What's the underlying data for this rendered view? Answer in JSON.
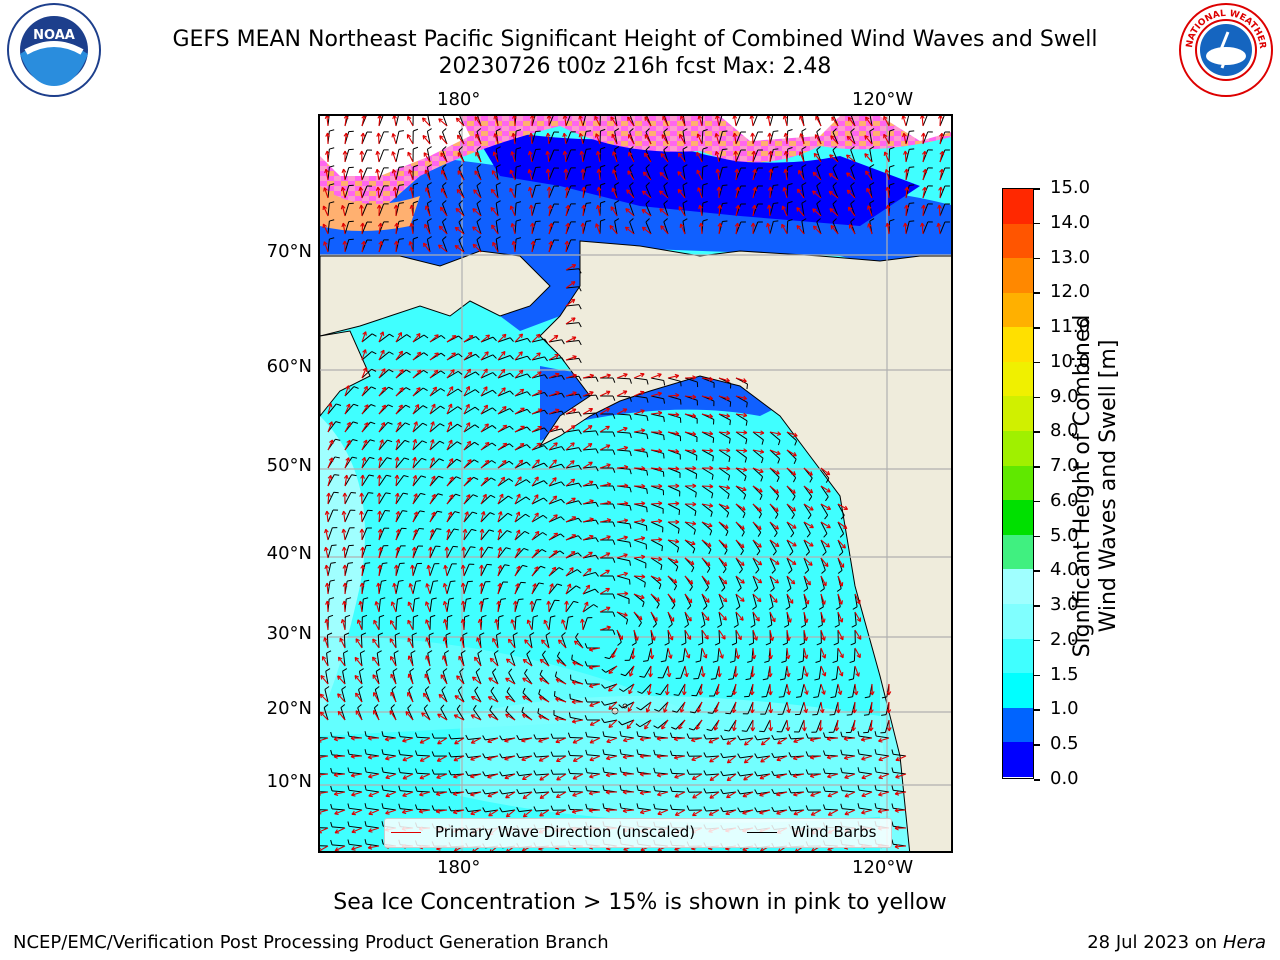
{
  "header": {
    "title_line1": "GEFS MEAN Northeast Pacific Significant Height of Combined Wind Waves and Swell",
    "title_line2": "20230726 t00z 216h fcst   Max: 2.48"
  },
  "logos": {
    "left": {
      "name": "noaa-logo",
      "text": "NOAA"
    },
    "right": {
      "name": "nws-logo",
      "text": "NATIONAL WEATHER SERVICE"
    }
  },
  "map": {
    "lon_labels_top": [
      "180°",
      "120°W"
    ],
    "lon_labels_bottom": [
      "180°",
      "120°W"
    ],
    "lat_labels": [
      "70°N",
      "60°N",
      "50°N",
      "40°N",
      "30°N",
      "20°N",
      "10°N"
    ],
    "legend": {
      "primary_wave": "Primary Wave Direction (unscaled)",
      "wind_barbs": "Wind Barbs",
      "primary_wave_color": "#e00000",
      "wind_barbs_color": "#000000"
    },
    "colors": {
      "land": "#efecdc",
      "sea_ice_white": "#ffffff",
      "grid": "#b0b0b0"
    }
  },
  "colorbar": {
    "label_line1": "Significant Height of Combined",
    "label_line2": "Wind Waves and Swell [m]",
    "ticks": [
      "0.0",
      "0.5",
      "1.0",
      "1.5",
      "2.0",
      "3.0",
      "4.0",
      "5.0",
      "6.0",
      "7.0",
      "8.0",
      "9.0",
      "10.0",
      "11.0",
      "12.0",
      "13.0",
      "14.0",
      "15.0"
    ],
    "colors": [
      "#0000ff",
      "#0064ff",
      "#00ffff",
      "#40ffff",
      "#80ffff",
      "#a0ffff",
      "#40f080",
      "#00e000",
      "#60e800",
      "#a0f000",
      "#d0f000",
      "#f0f000",
      "#ffe000",
      "#ffb000",
      "#ff8800",
      "#ff5500",
      "#ff2800",
      "#ff0000"
    ]
  },
  "footer": {
    "sea_ice_note": "Sea Ice Concentration > 15% is shown in pink to yellow",
    "left": "NCEP/EMC/Verification Post Processing Product Generation Branch",
    "right_date": "28 Jul 2023 on ",
    "right_host": "Hera"
  }
}
